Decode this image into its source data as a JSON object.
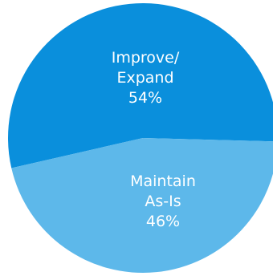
{
  "chart_data": {
    "type": "pie",
    "slices": [
      {
        "label_lines": [
          "Improve/",
          "Expand"
        ],
        "value": 54,
        "value_label": "54%",
        "color": "#0a8fdc"
      },
      {
        "label_lines": [
          "Maintain",
          "As-Is"
        ],
        "value": 46,
        "value_label": "46%",
        "color": "#5db8ea"
      }
    ],
    "legend": "none",
    "data_labels": "inside"
  }
}
